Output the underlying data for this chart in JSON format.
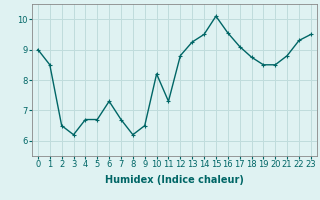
{
  "x": [
    0,
    1,
    2,
    3,
    4,
    5,
    6,
    7,
    8,
    9,
    10,
    11,
    12,
    13,
    14,
    15,
    16,
    17,
    18,
    19,
    20,
    21,
    22,
    23
  ],
  "y": [
    9.0,
    8.5,
    6.5,
    6.2,
    6.7,
    6.7,
    7.3,
    6.7,
    6.2,
    6.5,
    8.2,
    7.3,
    8.8,
    9.25,
    9.5,
    10.1,
    9.55,
    9.1,
    8.75,
    8.5,
    8.5,
    8.8,
    9.3,
    9.5
  ],
  "line_color": "#006666",
  "marker": "+",
  "marker_size": 3,
  "linewidth": 1.0,
  "xlabel": "Humidex (Indice chaleur)",
  "ylim": [
    5.5,
    10.5
  ],
  "xlim": [
    -0.5,
    23.5
  ],
  "yticks": [
    6,
    7,
    8,
    9,
    10
  ],
  "xticks": [
    0,
    1,
    2,
    3,
    4,
    5,
    6,
    7,
    8,
    9,
    10,
    11,
    12,
    13,
    14,
    15,
    16,
    17,
    18,
    19,
    20,
    21,
    22,
    23
  ],
  "bg_color": "#dff2f2",
  "grid_color": "#c0dcdc",
  "xlabel_fontsize": 7,
  "tick_fontsize": 6
}
